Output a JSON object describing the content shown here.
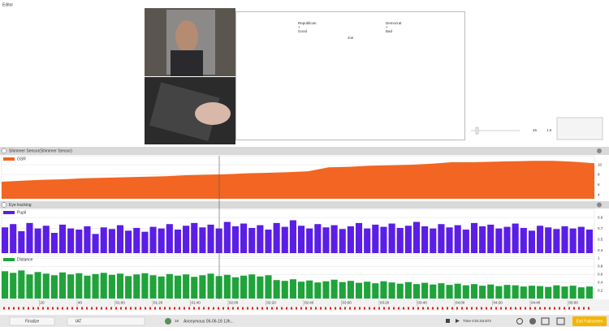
{
  "header": {
    "title": "Editor"
  },
  "stimulus": {
    "left": [
      "Republican",
      "+",
      "Good"
    ],
    "right": [
      "Democrat",
      "+",
      "Bad"
    ],
    "word": "Joe"
  },
  "player": {
    "volume": "45",
    "speed": "1.0"
  },
  "sections": [
    {
      "title": "Shimmer Sensor(Shimmer Sensor)"
    },
    {
      "title": "Eye tracking"
    }
  ],
  "charts": [
    {
      "type": "area",
      "name": "GSR",
      "color": "#f26522",
      "values": [
        6.6,
        6.8,
        7.0,
        7.1,
        7.3,
        7.4,
        7.5,
        7.6,
        7.7,
        7.9,
        8.0,
        8.1,
        8.3,
        8.4,
        8.5,
        8.7,
        9.5,
        9.6,
        9.8,
        9.9,
        10.0,
        10.2,
        10.5,
        10.5,
        10.6,
        10.7,
        10.8,
        10.8,
        10.6,
        10.3
      ],
      "ylim": [
        3.2,
        11.8
      ],
      "yticks": [
        4,
        6,
        8,
        10
      ]
    },
    {
      "type": "bar",
      "name": "Pupil",
      "color": "#5a1ee6",
      "values": [
        0.72,
        0.78,
        0.65,
        0.8,
        0.7,
        0.75,
        0.62,
        0.77,
        0.7,
        0.68,
        0.74,
        0.6,
        0.72,
        0.69,
        0.76,
        0.66,
        0.71,
        0.64,
        0.73,
        0.7,
        0.78,
        0.68,
        0.75,
        0.8,
        0.72,
        0.77,
        0.7,
        0.82,
        0.74,
        0.79,
        0.71,
        0.76,
        0.68,
        0.8,
        0.73,
        0.85,
        0.75,
        0.7,
        0.78,
        0.72,
        0.76,
        0.69,
        0.74,
        0.8,
        0.7,
        0.77,
        0.73,
        0.79,
        0.71,
        0.75,
        0.82,
        0.74,
        0.7,
        0.78,
        0.72,
        0.76,
        0.68,
        0.8,
        0.74,
        0.77,
        0.7,
        0.73,
        0.79,
        0.71,
        0.66,
        0.75,
        0.72,
        0.69,
        0.74,
        0.7,
        0.73,
        0.68
      ],
      "ylim": [
        0.25,
        1.05
      ],
      "yticks": [
        0.3,
        0.5,
        0.7,
        0.9
      ]
    },
    {
      "type": "bar",
      "name": "Distance",
      "color": "#1fa33a",
      "values": [
        0.68,
        0.64,
        0.7,
        0.6,
        0.66,
        0.62,
        0.58,
        0.65,
        0.6,
        0.63,
        0.57,
        0.61,
        0.64,
        0.59,
        0.62,
        0.56,
        0.6,
        0.63,
        0.58,
        0.55,
        0.61,
        0.57,
        0.6,
        0.54,
        0.58,
        0.62,
        0.56,
        0.59,
        0.53,
        0.57,
        0.6,
        0.55,
        0.58,
        0.46,
        0.44,
        0.48,
        0.42,
        0.45,
        0.4,
        0.43,
        0.47,
        0.41,
        0.44,
        0.39,
        0.42,
        0.38,
        0.43,
        0.4,
        0.37,
        0.41,
        0.36,
        0.39,
        0.35,
        0.38,
        0.34,
        0.37,
        0.33,
        0.36,
        0.32,
        0.35,
        0.31,
        0.34,
        0.33,
        0.3,
        0.32,
        0.31,
        0.29,
        0.33,
        0.3,
        0.32,
        0.28,
        0.3
      ],
      "ylim": [
        0,
        1.05
      ],
      "yticks": [
        0.2,
        0.4,
        0.6,
        0.8,
        1
      ]
    }
  ],
  "timeline": {
    "xlim": [
      0,
      314
    ],
    "xticks": [
      20,
      40,
      {
        "value": 60,
        "label": "01:00"
      },
      {
        "value": 80,
        "label": "01:20"
      },
      {
        "value": 100,
        "label": "01:40"
      },
      {
        "value": 120,
        "label": "02:00"
      },
      {
        "value": 140,
        "label": "02:20"
      },
      {
        "value": 160,
        "label": "02:40"
      },
      {
        "value": 180,
        "label": "03:00"
      },
      {
        "value": 200,
        "label": "03:20"
      },
      {
        "value": 220,
        "label": "03:40"
      },
      {
        "value": 240,
        "label": "04:00"
      },
      {
        "value": 260,
        "label": "04:20"
      },
      {
        "value": 280,
        "label": "04:40"
      },
      {
        "value": 300,
        "label": "05:00"
      }
    ]
  },
  "footer": {
    "finalize": "Finalize",
    "stimulus": "IAT",
    "count": "16",
    "respondent": "Anonymous 06-06-18 13h...",
    "time": "Time 0:01:53.872",
    "exit": "Exit Fullscreen"
  }
}
